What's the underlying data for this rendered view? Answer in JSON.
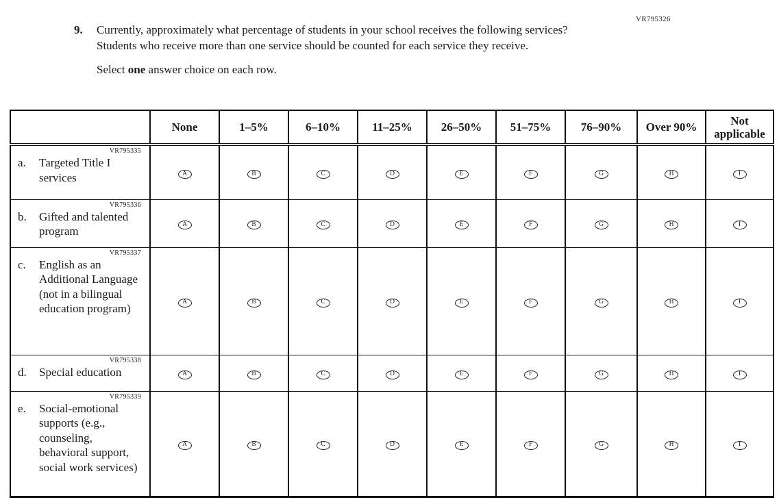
{
  "page": {
    "vr_code": "VR795326",
    "question_number": "9.",
    "question_text": "Currently, approximately what percentage of students in your school receives the following services? Students who receive more than one service should be counted for each service they receive.",
    "instruction_prefix": "Select ",
    "instruction_bold": "one",
    "instruction_suffix": " answer choice on each row."
  },
  "table": {
    "columns": [
      "None",
      "1–5%",
      "6–10%",
      "11–25%",
      "26–50%",
      "51–75%",
      "76–90%",
      "Over 90%",
      "Not applicable"
    ],
    "options": [
      "A",
      "B",
      "C",
      "D",
      "E",
      "F",
      "G",
      "H",
      "I"
    ],
    "rows": [
      {
        "vr_code": "VR795335",
        "prefix": "a.",
        "label": "Targeted Title I services"
      },
      {
        "vr_code": "VR795336",
        "prefix": "b.",
        "label": "Gifted and talented program"
      },
      {
        "vr_code": "VR795337",
        "prefix": "c.",
        "label": "English as an Additional Language (not in a bilingual education program)"
      },
      {
        "vr_code": "VR795338",
        "prefix": "d.",
        "label": "Special education"
      },
      {
        "vr_code": "VR795339",
        "prefix": "e.",
        "label": "Social-emotional supports (e.g., counseling, behavioral support, social work services)"
      }
    ]
  },
  "colors": {
    "ink": "#1c1c1c",
    "border": "#111111",
    "background": "#ffffff"
  }
}
